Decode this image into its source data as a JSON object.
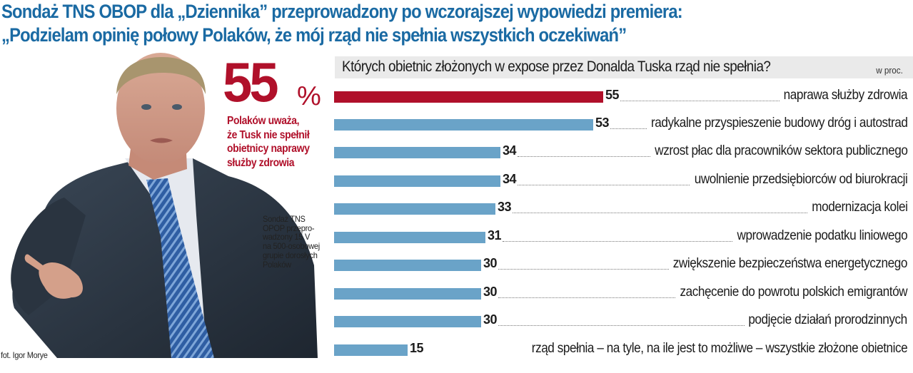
{
  "headline": {
    "line1": "Sondaż TNS OBOP dla „Dziennika” przeprowadzony po wczorajszej wypowiedzi premiera:",
    "line2": "„Podzielam opinię połowy Polaków, że mój rząd nie spełnia wszystkich oczekiwań”"
  },
  "highlight": {
    "value": "55",
    "unit": "%",
    "caption": [
      "Polaków uważa,",
      "że Tusk nie spełnił",
      "obietnicy naprawy",
      "służby zdrowia"
    ]
  },
  "survey_note": [
    "Sondaż TNS",
    "OPOP przepro-",
    "wadzony 15 V",
    "na 500-osobowej",
    "grupie dorosłych",
    "Polaków"
  ],
  "photo": {
    "credit": "fot. Igor Morye",
    "subject": "portrait-of-prime-minister"
  },
  "colors": {
    "headline": "#1a6aa3",
    "accent_red": "#b0102a",
    "bar_blue": "#6aa3c8",
    "header_bg": "#eaeaea"
  },
  "chart_data": {
    "type": "bar",
    "orientation": "horizontal",
    "title": "Których obietnic złożonych w expose przez Donalda Tuska rząd nie spełnia?",
    "unit_label": "w proc.",
    "xlabel": "",
    "ylabel": "",
    "xlim": [
      0,
      55
    ],
    "grid": false,
    "legend": null,
    "highlighted_category": "naprawa służby zdrowia",
    "categories": [
      "naprawa służby zdrowia",
      "radykalne przyspieszenie budowy dróg i autostrad",
      "wzrost płac dla pracowników sektora publicznego",
      "uwolnienie przedsiębiorców od biurokracji",
      "modernizacja kolei",
      "wprowadzenie podatku liniowego",
      "zwiększenie bezpieczeństwa energetycznego",
      "zachęcenie do powrotu polskich emigrantów",
      "podjęcie działań prorodzinnych",
      "rząd spełnia – na tyle, na ile jest to możliwe – wszystkie złożone obietnice"
    ],
    "values": [
      55,
      53,
      34,
      34,
      33,
      31,
      30,
      30,
      30,
      15
    ]
  }
}
